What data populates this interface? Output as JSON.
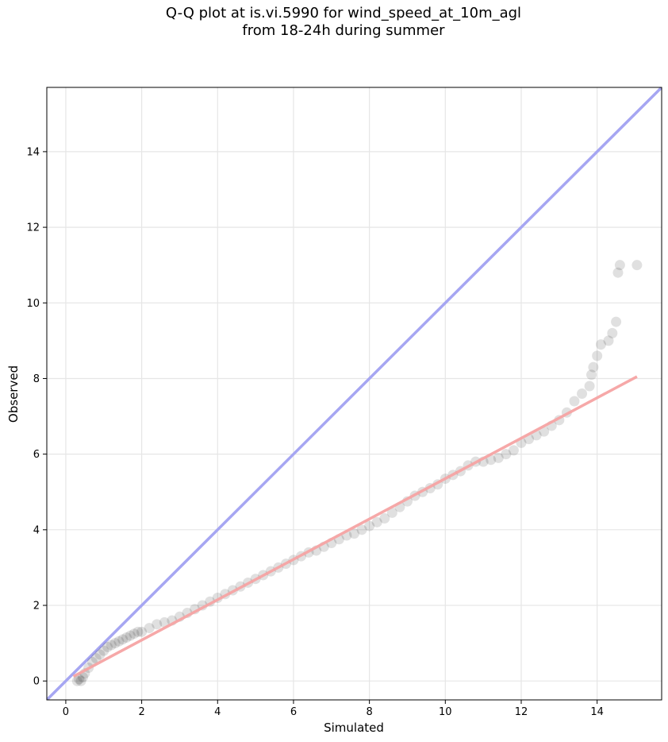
{
  "chart_data": {
    "type": "scatter",
    "title": "Q-Q plot at is.vi.5990 for wind_speed_at_10m_agl",
    "subtitle": "from 18-24h during summer",
    "xlabel": "Simulated",
    "ylabel": "Observed",
    "xlim": [
      -0.5,
      15.7
    ],
    "ylim": [
      -0.5,
      15.7
    ],
    "xticks": [
      "0",
      "2",
      "4",
      "6",
      "8",
      "10",
      "12",
      "14"
    ],
    "yticks": [
      "0",
      "2",
      "4",
      "6",
      "8",
      "10",
      "12",
      "14"
    ],
    "grid": true,
    "points": {
      "x": [
        0.3,
        0.35,
        0.4,
        0.45,
        0.5,
        0.6,
        0.7,
        0.8,
        0.9,
        1.0,
        1.1,
        1.2,
        1.3,
        1.4,
        1.5,
        1.6,
        1.7,
        1.8,
        1.9,
        2.0,
        2.2,
        2.4,
        2.6,
        2.8,
        3.0,
        3.2,
        3.4,
        3.6,
        3.8,
        4.0,
        4.2,
        4.4,
        4.6,
        4.8,
        5.0,
        5.2,
        5.4,
        5.6,
        5.8,
        6.0,
        6.2,
        6.4,
        6.6,
        6.8,
        7.0,
        7.2,
        7.4,
        7.6,
        7.8,
        8.0,
        8.2,
        8.4,
        8.6,
        8.8,
        9.0,
        9.2,
        9.4,
        9.6,
        9.8,
        10.0,
        10.2,
        10.4,
        10.6,
        10.8,
        11.0,
        11.2,
        11.4,
        11.6,
        11.8,
        12.0,
        12.2,
        12.4,
        12.6,
        12.8,
        13.0,
        13.2,
        13.4,
        13.6,
        13.8,
        13.85,
        13.9,
        14.0,
        14.1,
        14.3,
        14.4,
        14.5,
        14.55,
        14.6,
        15.05
      ],
      "y": [
        0.0,
        0.05,
        0.0,
        0.1,
        0.2,
        0.35,
        0.5,
        0.6,
        0.7,
        0.8,
        0.9,
        0.95,
        1.0,
        1.05,
        1.1,
        1.15,
        1.2,
        1.25,
        1.3,
        1.3,
        1.4,
        1.5,
        1.55,
        1.6,
        1.7,
        1.8,
        1.9,
        2.0,
        2.1,
        2.2,
        2.3,
        2.4,
        2.5,
        2.6,
        2.7,
        2.8,
        2.9,
        3.0,
        3.1,
        3.2,
        3.3,
        3.4,
        3.45,
        3.55,
        3.65,
        3.75,
        3.85,
        3.9,
        4.0,
        4.1,
        4.2,
        4.3,
        4.45,
        4.6,
        4.75,
        4.9,
        5.0,
        5.1,
        5.2,
        5.35,
        5.45,
        5.55,
        5.7,
        5.8,
        5.8,
        5.85,
        5.9,
        6.0,
        6.1,
        6.3,
        6.4,
        6.5,
        6.6,
        6.75,
        6.9,
        7.1,
        7.4,
        7.6,
        7.8,
        8.1,
        8.3,
        8.6,
        8.9,
        9.0,
        9.2,
        9.5,
        10.8,
        11.0,
        11.0
      ]
    },
    "identity_line": {
      "from": [
        -0.5,
        -0.5
      ],
      "to": [
        15.7,
        15.7
      ],
      "color": "#a6a6f2"
    },
    "fit_line": {
      "from": [
        0.2,
        0.12
      ],
      "to": [
        15.05,
        8.05
      ],
      "color": "#f5a3a3"
    },
    "point_color": "#000000",
    "point_alpha": 0.12
  }
}
